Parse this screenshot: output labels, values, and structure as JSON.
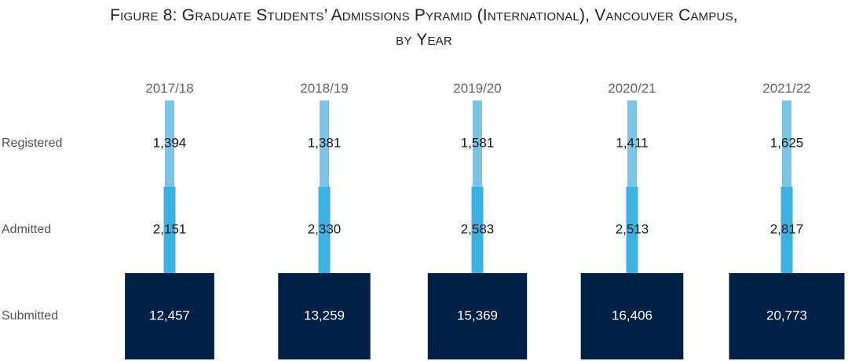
{
  "chart_data": {
    "type": "bar",
    "title_line1": "Figure 8: Graduate Students’ Admissions Pyramid (International), Vancouver Campus,",
    "title_line2": "by Year",
    "categories": [
      "2017/18",
      "2018/19",
      "2019/20",
      "2020/21",
      "2021/22"
    ],
    "levels": [
      "Registered",
      "Admitted",
      "Submitted"
    ],
    "series": [
      {
        "name": "Registered",
        "values": [
          1394,
          1381,
          1581,
          1411,
          1625
        ],
        "labels": [
          "1,394",
          "1,381",
          "1,581",
          "1,411",
          "1,625"
        ]
      },
      {
        "name": "Admitted",
        "values": [
          2151,
          2330,
          2583,
          2513,
          2817
        ],
        "labels": [
          "2,151",
          "2,330",
          "2,583",
          "2,513",
          "2,817"
        ]
      },
      {
        "name": "Submitted",
        "values": [
          12457,
          13259,
          15369,
          16406,
          20773
        ],
        "labels": [
          "12,457",
          "13,259",
          "15,369",
          "16,406",
          "20,773"
        ]
      }
    ],
    "colors": {
      "Registered": "#7cc4e6",
      "Admitted": "#3eb1e3",
      "Submitted": "#002145"
    }
  }
}
